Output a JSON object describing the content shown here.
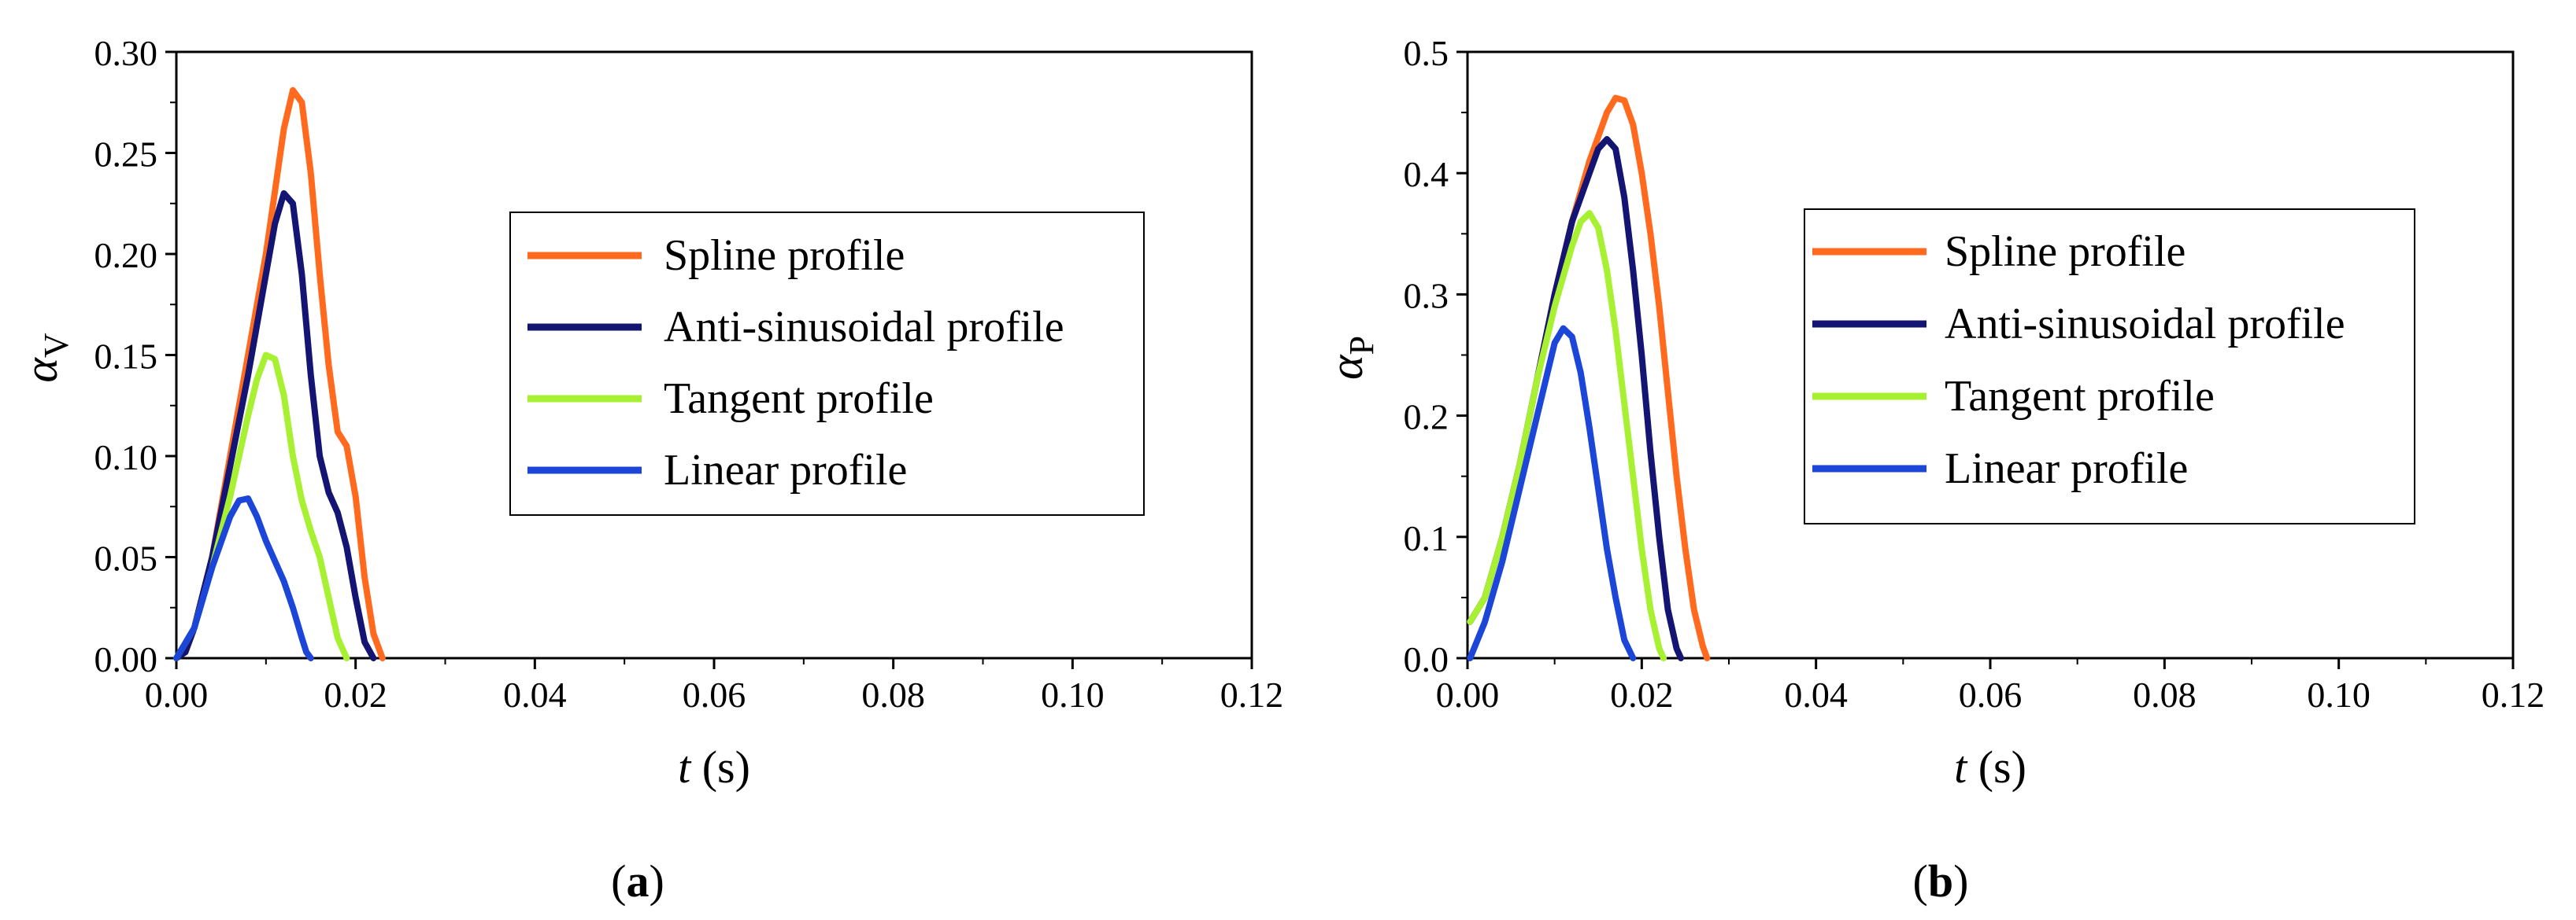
{
  "figure": {
    "panel_labels": [
      {
        "open": "(",
        "letter": "a",
        "close": ")"
      },
      {
        "open": "(",
        "letter": "b",
        "close": ")"
      }
    ]
  },
  "colors": {
    "Spline profile": "#FF6A1F",
    "Anti-sinusoidal profile": "#141472",
    "Tangent profile": "#A8F032",
    "Linear profile": "#1C46D8"
  },
  "chart_data": [
    {
      "type": "line",
      "xlabel_var": "t",
      "xlabel_unit": " (s)",
      "ylabel_symbol": "α",
      "ylabel_sub": "V",
      "xlim": [
        0,
        0.12
      ],
      "ylim": [
        0,
        0.3
      ],
      "xticks": [
        0.0,
        0.02,
        0.04,
        0.06,
        0.08,
        0.1,
        0.12
      ],
      "xtick_labels": [
        "0.00",
        "0.02",
        "0.04",
        "0.06",
        "0.08",
        "0.10",
        "0.12"
      ],
      "yticks": [
        0.0,
        0.05,
        0.1,
        0.15,
        0.2,
        0.25,
        0.3
      ],
      "ytick_labels": [
        "0.00",
        "0.05",
        "0.10",
        "0.15",
        "0.20",
        "0.25",
        "0.30"
      ],
      "legend": "center-right",
      "series": [
        {
          "name": "Spline profile",
          "x": [
            0.0,
            0.001,
            0.002,
            0.004,
            0.006,
            0.008,
            0.01,
            0.012,
            0.013,
            0.014,
            0.015,
            0.016,
            0.017,
            0.018,
            0.019,
            0.02,
            0.021,
            0.022,
            0.023
          ],
          "y": [
            0.0,
            0.003,
            0.015,
            0.05,
            0.1,
            0.15,
            0.2,
            0.262,
            0.281,
            0.275,
            0.24,
            0.19,
            0.145,
            0.112,
            0.105,
            0.08,
            0.04,
            0.012,
            0.0
          ]
        },
        {
          "name": "Anti-sinusoidal profile",
          "x": [
            0.0,
            0.001,
            0.002,
            0.004,
            0.006,
            0.008,
            0.01,
            0.011,
            0.012,
            0.013,
            0.014,
            0.015,
            0.016,
            0.017,
            0.018,
            0.019,
            0.02,
            0.021,
            0.022
          ],
          "y": [
            0.0,
            0.003,
            0.015,
            0.05,
            0.095,
            0.14,
            0.19,
            0.215,
            0.23,
            0.225,
            0.19,
            0.14,
            0.1,
            0.082,
            0.072,
            0.055,
            0.03,
            0.008,
            0.0
          ]
        },
        {
          "name": "Tangent profile",
          "x": [
            0.0,
            0.002,
            0.004,
            0.006,
            0.008,
            0.009,
            0.01,
            0.011,
            0.012,
            0.013,
            0.014,
            0.015,
            0.016,
            0.017,
            0.018,
            0.019
          ],
          "y": [
            0.0,
            0.015,
            0.045,
            0.08,
            0.12,
            0.138,
            0.15,
            0.148,
            0.13,
            0.1,
            0.078,
            0.063,
            0.05,
            0.03,
            0.01,
            0.0
          ]
        },
        {
          "name": "Linear profile",
          "x": [
            0.0,
            0.002,
            0.004,
            0.006,
            0.007,
            0.008,
            0.009,
            0.01,
            0.011,
            0.012,
            0.013,
            0.014,
            0.0145,
            0.015
          ],
          "y": [
            0.0,
            0.015,
            0.045,
            0.07,
            0.078,
            0.079,
            0.07,
            0.058,
            0.048,
            0.038,
            0.025,
            0.01,
            0.003,
            0.0
          ]
        }
      ]
    },
    {
      "type": "line",
      "xlabel_var": "t",
      "xlabel_unit": " (s)",
      "ylabel_symbol": "α",
      "ylabel_sub": "P",
      "xlim": [
        0,
        0.12
      ],
      "ylim": [
        0,
        0.5
      ],
      "xticks": [
        0.0,
        0.02,
        0.04,
        0.06,
        0.08,
        0.1,
        0.12
      ],
      "xtick_labels": [
        "0.00",
        "0.02",
        "0.04",
        "0.06",
        "0.08",
        "0.10",
        "0.12"
      ],
      "yticks": [
        0.0,
        0.1,
        0.2,
        0.3,
        0.4,
        0.5
      ],
      "ytick_labels": [
        "0.0",
        "0.1",
        "0.2",
        "0.3",
        "0.4",
        "0.5"
      ],
      "legend": "center-right",
      "series": [
        {
          "name": "Spline profile",
          "x": [
            0.0003,
            0.002,
            0.004,
            0.006,
            0.008,
            0.01,
            0.012,
            0.014,
            0.016,
            0.017,
            0.018,
            0.019,
            0.02,
            0.021,
            0.022,
            0.023,
            0.024,
            0.025,
            0.026,
            0.027,
            0.0275
          ],
          "y": [
            0.03,
            0.05,
            0.1,
            0.16,
            0.23,
            0.3,
            0.36,
            0.41,
            0.45,
            0.462,
            0.46,
            0.44,
            0.4,
            0.35,
            0.29,
            0.22,
            0.15,
            0.09,
            0.04,
            0.01,
            0.0
          ]
        },
        {
          "name": "Anti-sinusoidal profile",
          "x": [
            0.0003,
            0.002,
            0.004,
            0.006,
            0.008,
            0.01,
            0.012,
            0.014,
            0.015,
            0.016,
            0.017,
            0.018,
            0.019,
            0.02,
            0.021,
            0.022,
            0.023,
            0.024,
            0.0245
          ],
          "y": [
            0.03,
            0.05,
            0.1,
            0.16,
            0.23,
            0.3,
            0.36,
            0.4,
            0.42,
            0.428,
            0.42,
            0.38,
            0.32,
            0.25,
            0.17,
            0.1,
            0.04,
            0.008,
            0.0
          ]
        },
        {
          "name": "Tangent profile",
          "x": [
            0.0003,
            0.002,
            0.004,
            0.006,
            0.008,
            0.01,
            0.012,
            0.013,
            0.014,
            0.015,
            0.016,
            0.017,
            0.018,
            0.019,
            0.02,
            0.021,
            0.022,
            0.0225
          ],
          "y": [
            0.03,
            0.05,
            0.1,
            0.16,
            0.23,
            0.29,
            0.34,
            0.36,
            0.367,
            0.355,
            0.32,
            0.27,
            0.21,
            0.15,
            0.09,
            0.04,
            0.008,
            0.0
          ]
        },
        {
          "name": "Linear profile",
          "x": [
            0.0003,
            0.002,
            0.004,
            0.006,
            0.008,
            0.009,
            0.01,
            0.011,
            0.012,
            0.013,
            0.014,
            0.015,
            0.016,
            0.017,
            0.018,
            0.019
          ],
          "y": [
            0.0,
            0.03,
            0.08,
            0.14,
            0.2,
            0.23,
            0.26,
            0.272,
            0.265,
            0.235,
            0.19,
            0.14,
            0.09,
            0.05,
            0.015,
            0.0
          ]
        }
      ]
    }
  ]
}
